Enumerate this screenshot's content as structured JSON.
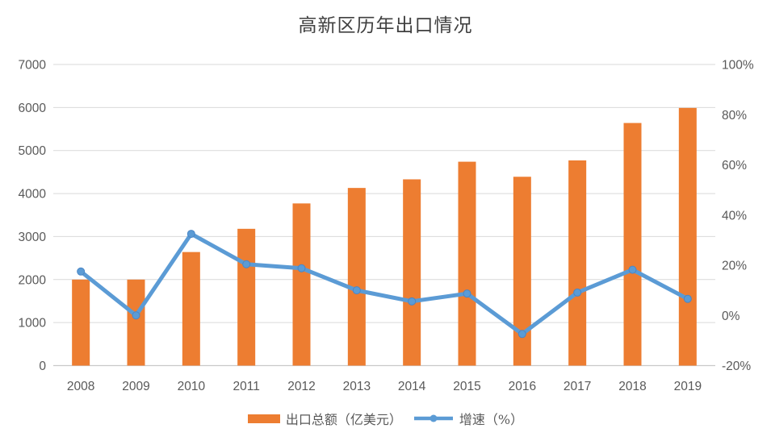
{
  "title": "高新区历年出口情况",
  "legend": [
    {
      "label": "出口总额（亿美元）",
      "type": "bar",
      "swatch": "orange-rect"
    },
    {
      "label": "增速（%）",
      "type": "line",
      "swatch": "blue-line-dot"
    }
  ],
  "colors": {
    "bar": "#ED7D31",
    "line": "#5B9BD5",
    "marker": "#5B9BD5",
    "marker_edge": "#4A86C5",
    "gridline": "#D9D9D9",
    "axis_line": "#C9C9C9",
    "axis_text": "#595959",
    "title_text": "#404040"
  },
  "chart_data": {
    "type": "bar",
    "subtype": "combo-bar-line-dual-axis",
    "title": "高新区历年出口情况",
    "categories": [
      "2008",
      "2009",
      "2010",
      "2011",
      "2012",
      "2013",
      "2014",
      "2015",
      "2016",
      "2017",
      "2018",
      "2019"
    ],
    "series": [
      {
        "name": "出口总额（亿美元）",
        "type": "bar",
        "axis": "left",
        "values": [
          2000,
          2000,
          2640,
          3180,
          3770,
          4130,
          4330,
          4740,
          4390,
          4770,
          5640,
          5990
        ]
      },
      {
        "name": "增速（%）",
        "type": "line",
        "axis": "right",
        "values": [
          17.5,
          0,
          32.5,
          20.4,
          18.8,
          10,
          5.6,
          8.7,
          -7.4,
          9.1,
          18.2,
          6.6
        ]
      }
    ],
    "left_axis": {
      "min": 0,
      "max": 7000,
      "step": 1000,
      "ticks": [
        "0",
        "1000",
        "2000",
        "3000",
        "4000",
        "5000",
        "6000",
        "7000"
      ]
    },
    "right_axis": {
      "min": -20,
      "max": 100,
      "step": 20,
      "ticks": [
        "-20%",
        "0%",
        "20%",
        "40%",
        "60%",
        "80%",
        "100%"
      ]
    },
    "grid": true,
    "legend_position": "bottom",
    "xlabel": "",
    "ylabel": ""
  }
}
